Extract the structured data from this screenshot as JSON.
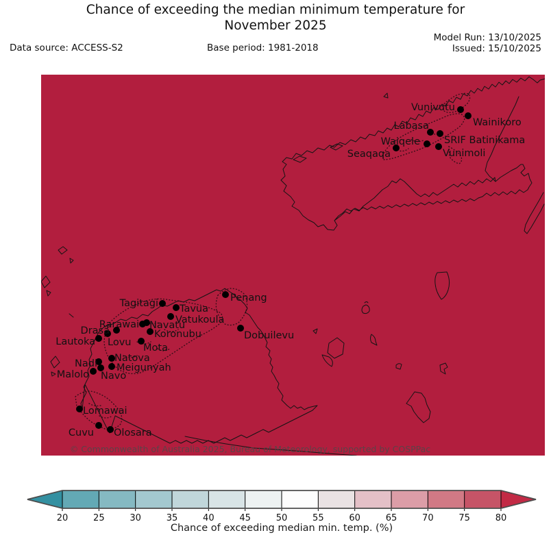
{
  "header": {
    "title_line1": "Chance of exceeding the median minimum temperature for",
    "title_line2": "November 2025",
    "data_source": "Data source: ACCESS-S2",
    "base_period": "Base period: 1981-2018",
    "model_run": "Model Run: 13/10/2025",
    "issued": "Issued: 15/10/2025"
  },
  "map": {
    "background_color": "#b21e3e",
    "coastline_color": "#141414",
    "station_dot_color": "#000000",
    "station_label_color": "#111111",
    "copyright": "© Commonwealth of Australia 2025, Bureau of Meteorology, supported by COSPPac",
    "stations": [
      {
        "name": "Vunivutu",
        "dot": [
          612,
          51
        ],
        "label": [
          604,
          52
        ],
        "anchor": "end"
      },
      {
        "name": "Wainikoro",
        "dot": [
          623,
          60
        ],
        "label": [
          630,
          74
        ],
        "anchor": "start"
      },
      {
        "name": "Labasa",
        "dot": [
          568,
          84
        ],
        "label": [
          566,
          79
        ],
        "anchor": "end"
      },
      {
        "name": "SRIF Batinikama",
        "dot": [
          582,
          86
        ],
        "label": [
          588,
          100
        ],
        "anchor": "start"
      },
      {
        "name": "Waiqele",
        "dot": [
          563,
          101
        ],
        "label": [
          553,
          102
        ],
        "anchor": "end"
      },
      {
        "name": "Vunimoli",
        "dot": [
          580,
          105
        ],
        "label": [
          586,
          119
        ],
        "anchor": "start"
      },
      {
        "name": "Seaqaqa",
        "dot": [
          518,
          107
        ],
        "label": [
          510,
          120
        ],
        "anchor": "end"
      },
      {
        "name": "Penang",
        "dot": [
          269,
          321
        ],
        "label": [
          276,
          330
        ],
        "anchor": "start"
      },
      {
        "name": "Tagitagi",
        "dot": [
          177,
          334
        ],
        "label": [
          171,
          338
        ],
        "anchor": "end"
      },
      {
        "name": "Tavua",
        "dot": [
          197,
          340
        ],
        "label": [
          202,
          346
        ],
        "anchor": "start"
      },
      {
        "name": "Vatukoula",
        "dot": [
          189,
          353
        ],
        "label": [
          196,
          362
        ],
        "anchor": "start"
      },
      {
        "name": "Rarawai",
        "dot": [
          148,
          364
        ],
        "label": [
          143,
          369
        ],
        "anchor": "end"
      },
      {
        "name": "Navatu",
        "dot": [
          154,
          362
        ],
        "label": [
          158,
          370
        ],
        "anchor": "start"
      },
      {
        "name": "Drasa",
        "dot": [
          97,
          378
        ],
        "label": [
          100,
          378
        ],
        "anchor": "end"
      },
      {
        "name": "Lovu",
        "dot": [
          110,
          373
        ],
        "label": [
          97,
          395
        ],
        "anchor": "start"
      },
      {
        "name": "Koronubu",
        "dot": [
          159,
          375
        ],
        "label": [
          165,
          383
        ],
        "anchor": "start"
      },
      {
        "name": "Lautoka",
        "dot": [
          84,
          385
        ],
        "label": [
          79,
          394
        ],
        "anchor": "end"
      },
      {
        "name": "Mota",
        "dot": [
          146,
          389
        ],
        "label": [
          149,
          403
        ],
        "anchor": "start"
      },
      {
        "name": "Natova",
        "dot": [
          103,
          414
        ],
        "label": [
          107,
          418
        ],
        "anchor": "start"
      },
      {
        "name": "Nadi",
        "dot": [
          84,
          419
        ],
        "label": [
          82,
          426
        ],
        "anchor": "end"
      },
      {
        "name": "Meigunyah",
        "dot": [
          103,
          426
        ],
        "label": [
          110,
          432
        ],
        "anchor": "start"
      },
      {
        "name": "Navo",
        "dot": [
          87,
          428
        ],
        "label": [
          87,
          444
        ],
        "anchor": "start"
      },
      {
        "name": "Malolo",
        "dot": [
          76,
          433
        ],
        "label": [
          70,
          442
        ],
        "anchor": "end"
      },
      {
        "name": "Dobuilevu",
        "dot": [
          291,
          370
        ],
        "label": [
          296,
          385
        ],
        "anchor": "start"
      },
      {
        "name": "Lomawai",
        "dot": [
          56,
          488
        ],
        "label": [
          61,
          495
        ],
        "anchor": "start"
      },
      {
        "name": "Cuvu",
        "dot": [
          84,
          512
        ],
        "label": [
          77,
          527
        ],
        "anchor": "end"
      },
      {
        "name": "Olosara",
        "dot": [
          101,
          518
        ],
        "label": [
          106,
          527
        ],
        "anchor": "start"
      }
    ]
  },
  "colorbar": {
    "label": "Chance of exceeding median min. temp. (%)",
    "ticks": [
      20,
      25,
      30,
      35,
      40,
      45,
      50,
      55,
      60,
      65,
      70,
      75,
      80
    ],
    "segment_colors": [
      "#63a9b5",
      "#85b9c2",
      "#a3c8cf",
      "#c0d6da",
      "#d8e4e6",
      "#edf2f2",
      "#fdfdfd",
      "#e9e2e3",
      "#e4c0c7",
      "#dc9da7",
      "#d17985",
      "#c65467"
    ],
    "under_arrow_color": "#3390a1",
    "over_arrow_color": "#c22a45",
    "outline_color": "#4d4d4d",
    "tick_color": "#000000"
  }
}
